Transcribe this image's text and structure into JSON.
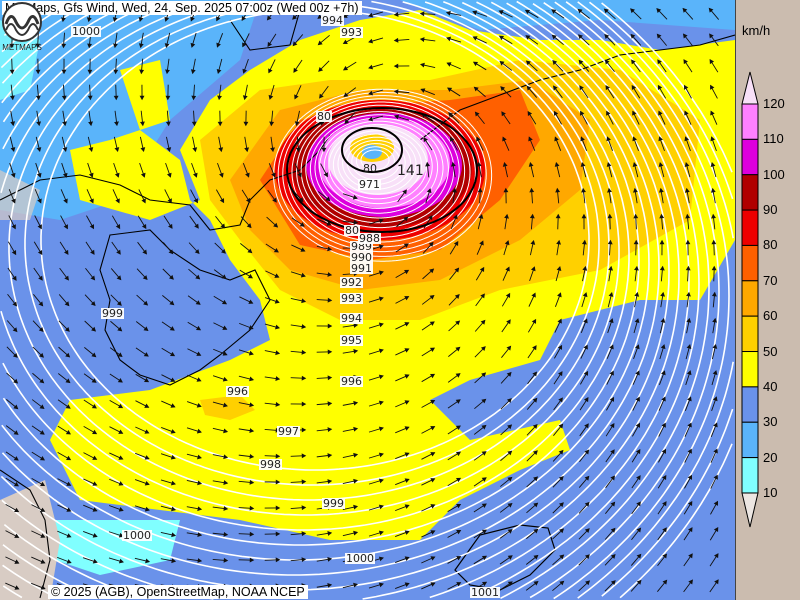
{
  "header": {
    "title": "MetMaps, Gfs Wind, Wed, 24. Sep. 2025 07:00z (Wed 00z +7h)"
  },
  "footer": {
    "copyright": "© 2025 (AGB), OpenStreetMap, NOAA NCEP",
    "logo_text": "METMAPS"
  },
  "legend": {
    "unit": "km/h",
    "ticks": [
      "120",
      "110",
      "100",
      "90",
      "80",
      "70",
      "60",
      "50",
      "40",
      "30",
      "20",
      "10"
    ],
    "colors": {
      "above_120": "#f8e0f8",
      "110_120": "#ff80ff",
      "100_110": "#dd00dd",
      "90_100": "#b00000",
      "80_90": "#ee0000",
      "70_80": "#ff6000",
      "60_70": "#ffa800",
      "50_60": "#ffd000",
      "40_50": "#ffff00",
      "30_40": "#6a92ea",
      "20_30": "#5ab4fa",
      "10_20": "#80ffff",
      "below_10": "#ece6e2"
    }
  },
  "isobars": {
    "labels": [
      "1000",
      "994",
      "993",
      "999",
      "996",
      "997",
      "998",
      "999",
      "1000",
      "1000",
      "1001",
      "992",
      "993",
      "994",
      "995",
      "996",
      "991",
      "990",
      "989",
      "988",
      "971",
      "80",
      "80",
      "80"
    ],
    "high_low_label": "141"
  },
  "icons": {
    "wind_vector": "arrow-icon",
    "logo": "metmaps-logo"
  }
}
